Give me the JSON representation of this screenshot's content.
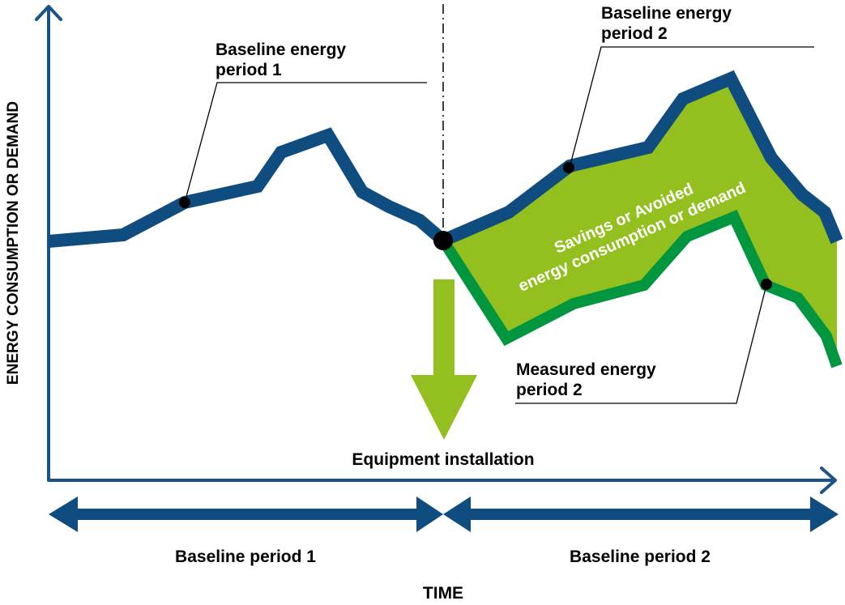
{
  "axes": {
    "y_label": "ENERGY CONSUMPTION OR DEMAND",
    "x_label": "TIME"
  },
  "callouts": {
    "baseline_p1": [
      "Baseline energy",
      "period 1"
    ],
    "baseline_p2": [
      "Baseline energy",
      "period 2"
    ],
    "measured_p2": [
      "Measured energy",
      "period 2"
    ]
  },
  "savings_label": [
    "Savings or Avoided",
    "energy consumption or demand"
  ],
  "event_label": "Equipment installation",
  "periods": {
    "period1": "Baseline period 1",
    "period2": "Baseline period 2"
  },
  "colors": {
    "baseline": "#0f4c7f",
    "measured": "#00963f",
    "savings": "#93c01f",
    "axis": "#1a5486"
  }
}
